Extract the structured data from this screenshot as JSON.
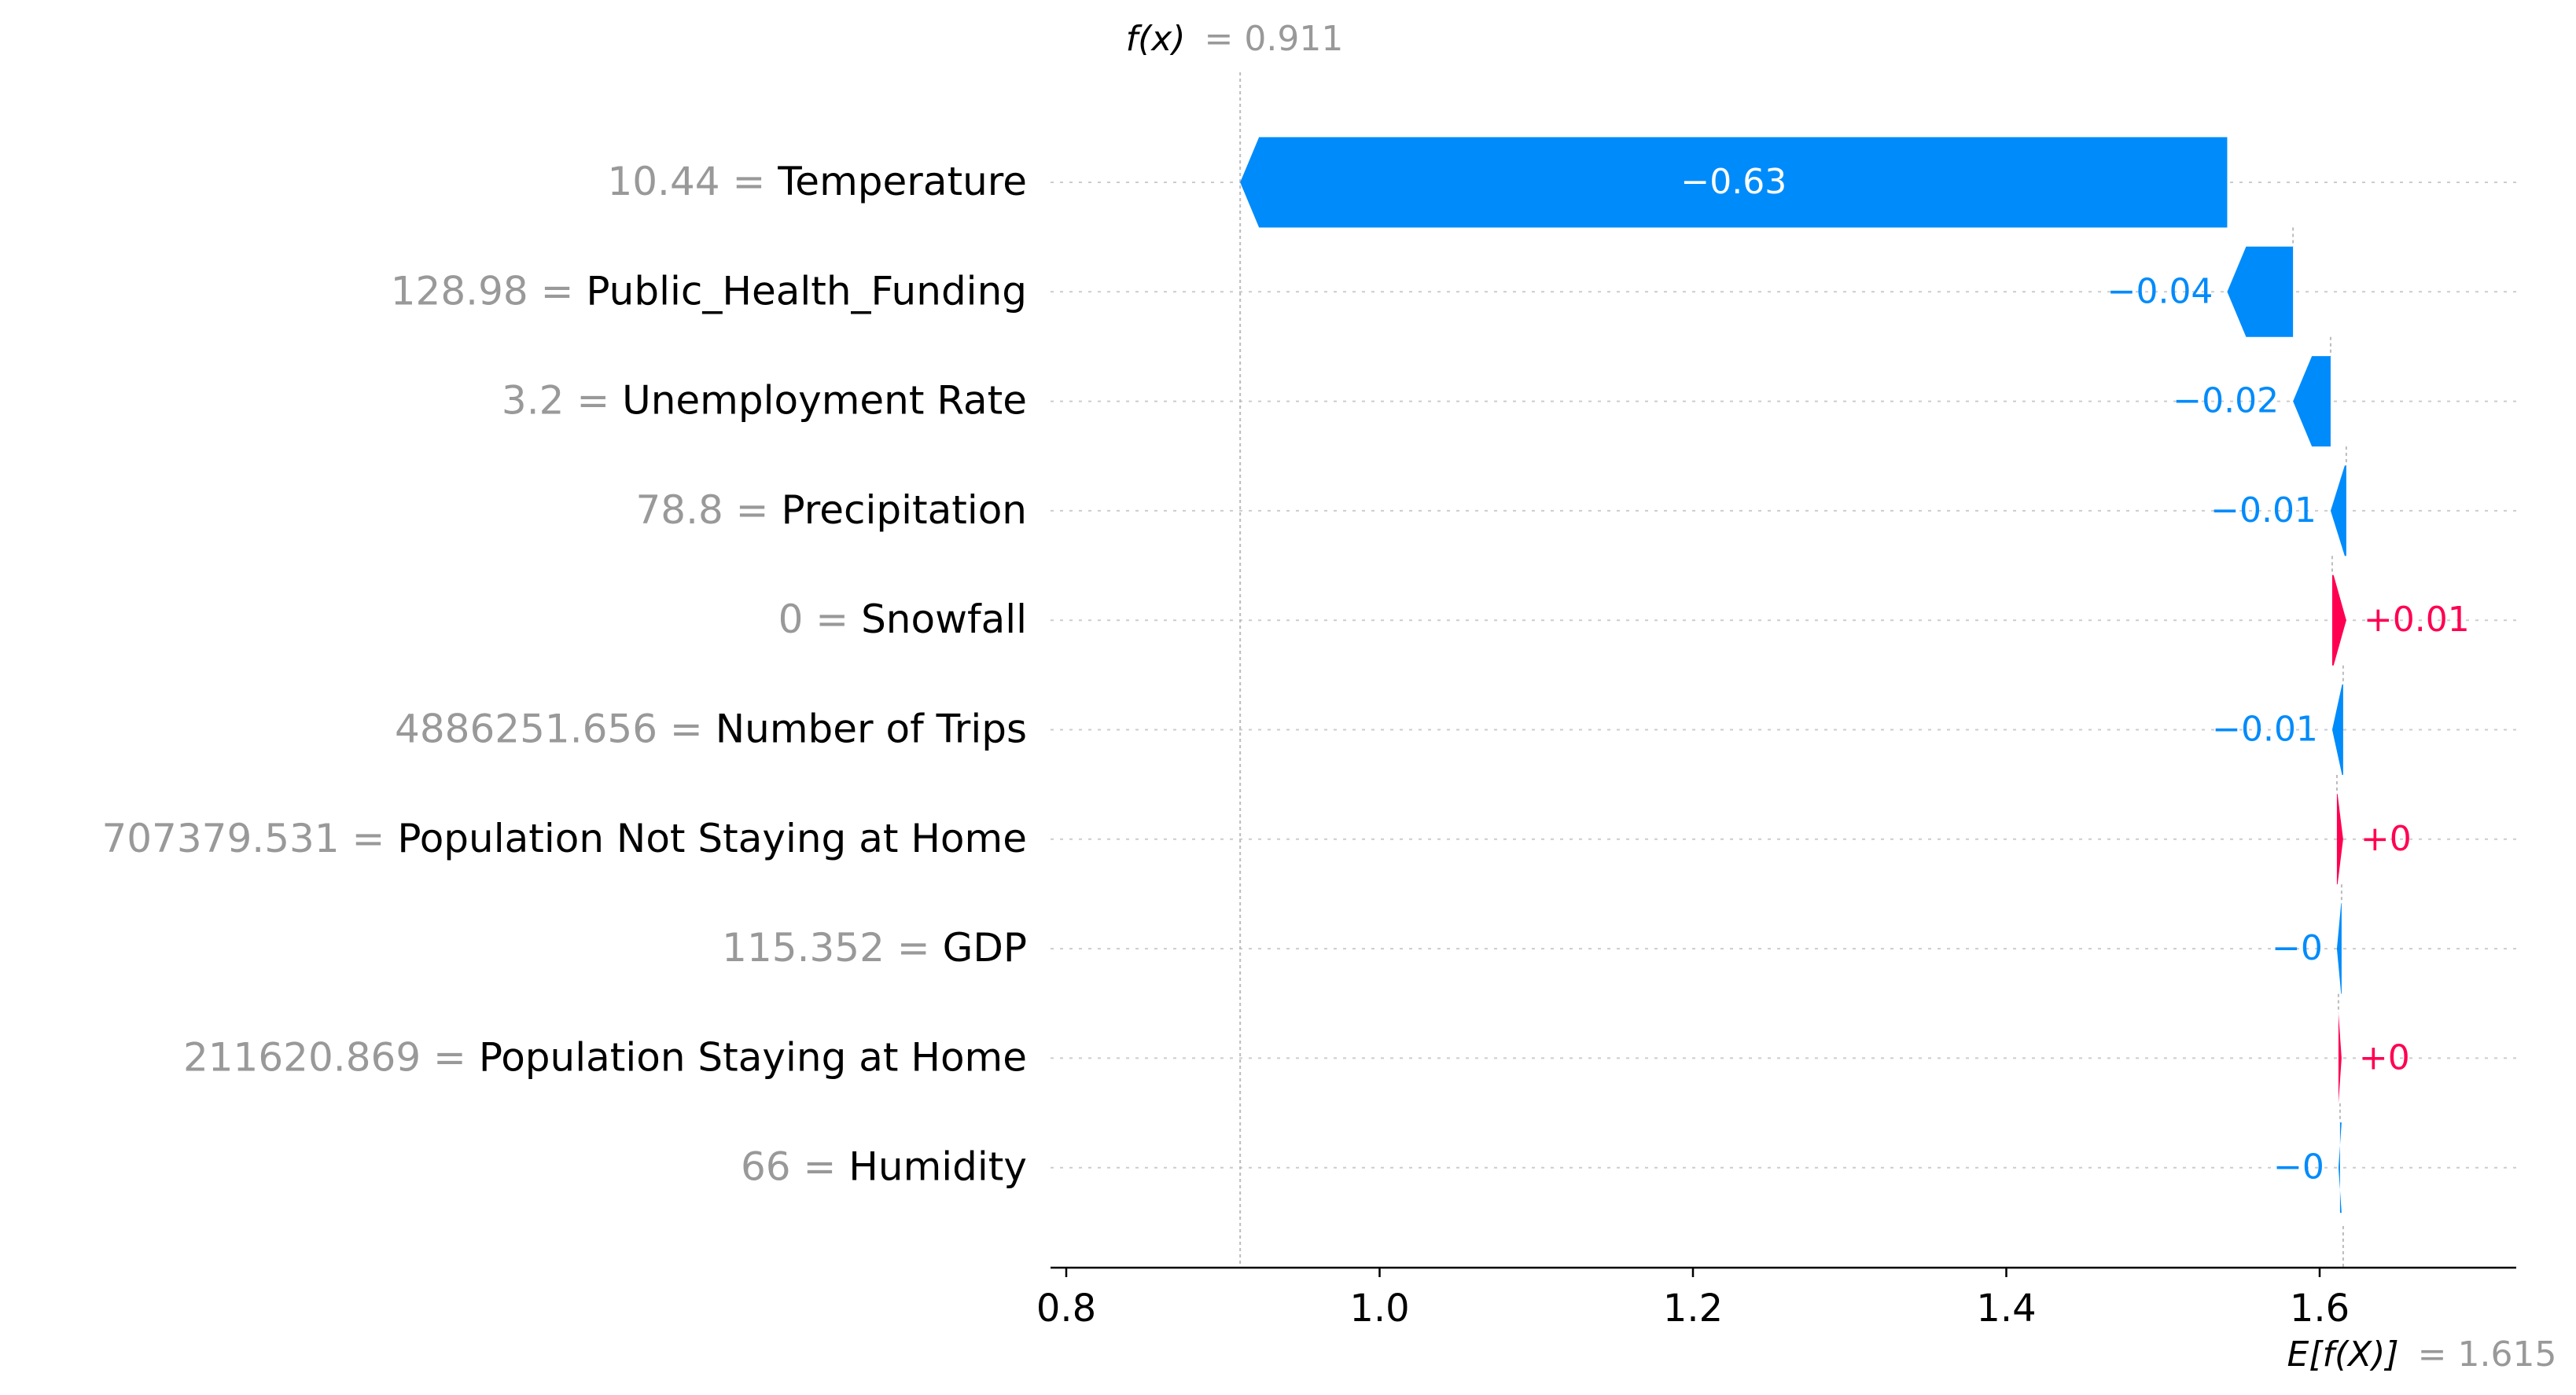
{
  "chart_data": {
    "type": "waterfall",
    "fx_label": "f(x)",
    "fx_value": "= 0.911",
    "base_label": "E[f(X)]",
    "base_value": "= 1.615",
    "fx": 0.911,
    "base": 1.615,
    "xlim": [
      0.78,
      1.72
    ],
    "xticks": [
      "0.8",
      "1.0",
      "1.2",
      "1.4",
      "1.6"
    ],
    "xtick_values": [
      0.8,
      1.0,
      1.2,
      1.4,
      1.6
    ],
    "colors": {
      "negative": "#008bfb",
      "positive": "#ff0051",
      "value_text": "#999999",
      "grid": "#cccccc"
    },
    "features": [
      {
        "value": "10.44",
        "name": "Temperature",
        "shap": -0.63,
        "label": "−0.63",
        "end": 0.911,
        "start": 1.541
      },
      {
        "value": "128.98",
        "name": "Public_Health_Funding",
        "shap": -0.04,
        "label": "−0.04",
        "end": 1.541,
        "start": 1.583
      },
      {
        "value": "3.2",
        "name": "Unemployment Rate",
        "shap": -0.02,
        "label": "−0.02",
        "end": 1.583,
        "start": 1.607
      },
      {
        "value": "78.8",
        "name": "Precipitation",
        "shap": -0.01,
        "label": "−0.01",
        "end": 1.607,
        "start": 1.617
      },
      {
        "value": "0",
        "name": "Snowfall",
        "shap": 0.01,
        "label": "+0.01",
        "end": 1.617,
        "start": 1.608
      },
      {
        "value": "4886251.656",
        "name": "Number of Trips",
        "shap": -0.01,
        "label": "−0.01",
        "end": 1.608,
        "start": 1.615
      },
      {
        "value": "707379.531",
        "name": "Population Not Staying at Home",
        "shap": 0.004,
        "label": "+0",
        "end": 1.615,
        "start": 1.611
      },
      {
        "value": "115.352",
        "name": "GDP",
        "shap": -0.003,
        "label": "−0",
        "end": 1.611,
        "start": 1.614
      },
      {
        "value": "211620.869",
        "name": "Population Staying at Home",
        "shap": 0.002,
        "label": "+0",
        "end": 1.614,
        "start": 1.612
      },
      {
        "value": "66",
        "name": "Humidity",
        "shap": -0.001,
        "label": "−0",
        "end": 1.612,
        "start": 1.613
      }
    ]
  }
}
